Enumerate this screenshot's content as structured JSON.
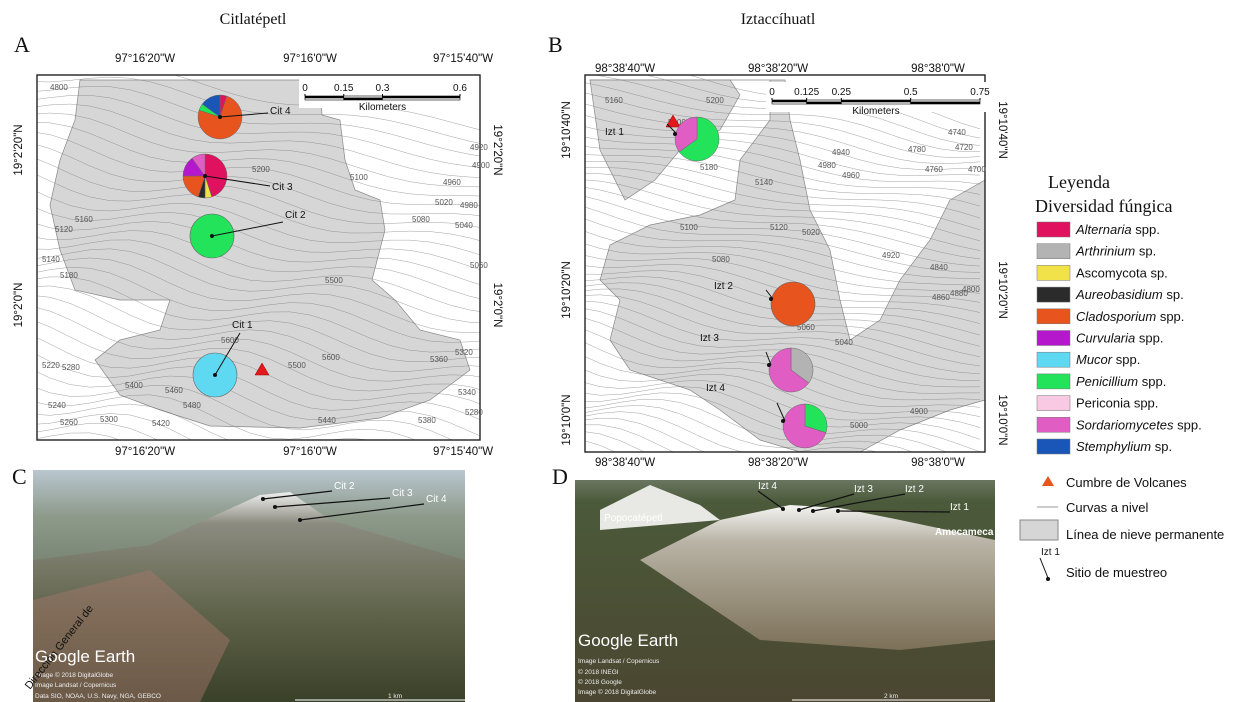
{
  "watermark": "Dirección General de",
  "legend": {
    "title": "Leyenda",
    "subtitle": "Diversidad fúngica",
    "taxa": [
      {
        "genus": "Alternaria",
        "rank": "spp.",
        "italic": true,
        "color": "#e0115f"
      },
      {
        "genus": "Arthrinium",
        "rank": "sp.",
        "italic": true,
        "color": "#b3b3b3"
      },
      {
        "genus": "Ascomycota",
        "rank": "sp.",
        "italic": false,
        "color": "#f2e24a"
      },
      {
        "genus": "Aureobasidium",
        "rank": "sp.",
        "italic": true,
        "color": "#2b2b2b"
      },
      {
        "genus": "Cladosporium",
        "rank": "spp.",
        "italic": true,
        "color": "#e8541e"
      },
      {
        "genus": "Curvularia",
        "rank": "spp.",
        "italic": true,
        "color": "#b417cc"
      },
      {
        "genus": "Mucor",
        "rank": "spp.",
        "italic": true,
        "color": "#5fd8f2"
      },
      {
        "genus": "Penicillium",
        "rank": "spp.",
        "italic": true,
        "color": "#22e35a"
      },
      {
        "genus": "Periconia",
        "rank": "spp.",
        "italic": false,
        "color": "#f9c8e2"
      },
      {
        "genus": "Sordariomycetes",
        "rank": "spp.",
        "italic": true,
        "color": "#e05ec4"
      },
      {
        "genus": "Stemphylium",
        "rank": "sp.",
        "italic": true,
        "color": "#1a56b8"
      }
    ],
    "symbols": {
      "summit": "Cumbre de Volcanes",
      "contours": "Curvas a nivel",
      "snow": "Línea de nieve permanente",
      "site_example": "Izt 1",
      "site": "Sitio de muestreo"
    }
  },
  "panels": [
    {
      "letter": "A",
      "title": "Citlatépetl",
      "lon_labels": [
        "97°16'20\"W",
        "97°16'0\"W",
        "97°15'40\"W"
      ],
      "lat_labels": [
        "19°2'20\"N",
        "19°2'0\"N"
      ],
      "scale_ticks": [
        0,
        0.15,
        0.3,
        0.6
      ],
      "scale_unit": "Kilometers",
      "contour_labels": [
        4800,
        4920,
        4900,
        4960,
        4980,
        5020,
        5040,
        5080,
        5060,
        5100,
        5200,
        5120,
        5160,
        5140,
        5180,
        5500,
        5600,
        5500,
        5600,
        5380,
        5320,
        5360,
        5340,
        5280,
        5280,
        5220,
        5240,
        5260,
        5300,
        5400,
        5420,
        5460,
        5480,
        5440
      ],
      "sites": [
        {
          "label": "Cit 4",
          "values": [
            5,
            0,
            0,
            0,
            75,
            0,
            0,
            5,
            0,
            0,
            15
          ]
        },
        {
          "label": "Cit 3",
          "values": [
            45,
            0,
            5,
            5,
            20,
            15,
            0,
            0,
            0,
            10,
            0
          ]
        },
        {
          "label": "Cit 2",
          "values": [
            0,
            0,
            0,
            0,
            0,
            0,
            0,
            100,
            0,
            0,
            0
          ]
        },
        {
          "label": "Cit 1",
          "values": [
            0,
            0,
            0,
            0,
            0,
            0,
            100,
            0,
            0,
            0,
            0
          ]
        }
      ]
    },
    {
      "letter": "B",
      "title": "Iztaccíhuatl",
      "lon_labels": [
        "98°38'40\"W",
        "98°38'20\"W",
        "98°38'0\"W"
      ],
      "lat_labels": [
        "19°10'40\"N",
        "19°10'20\"N",
        "19°10'0\"N"
      ],
      "scale_ticks": [
        0,
        0.125,
        0.25,
        0.5,
        0.75
      ],
      "scale_unit": "Kilometers",
      "contour_labels": [
        5160,
        5200,
        5200,
        5180,
        5140,
        5120,
        5100,
        5080,
        5060,
        5020,
        5040,
        5020,
        5000,
        4900,
        4920,
        4840,
        4860,
        4880,
        4800,
        4940,
        4980,
        4960,
        4780,
        4760,
        4720,
        4700,
        4740
      ],
      "sites": [
        {
          "label": "Izt 1",
          "values": [
            0,
            0,
            0,
            0,
            0,
            0,
            0,
            65,
            0,
            35,
            0
          ]
        },
        {
          "label": "Izt 2",
          "values": [
            0,
            0,
            0,
            0,
            100,
            0,
            0,
            0,
            0,
            0,
            0
          ]
        },
        {
          "label": "Izt 3",
          "values": [
            0,
            35,
            0,
            0,
            0,
            0,
            0,
            0,
            0,
            65,
            0
          ]
        },
        {
          "label": "Izt 4",
          "values": [
            0,
            0,
            0,
            0,
            0,
            0,
            0,
            30,
            0,
            70,
            0
          ]
        }
      ]
    }
  ],
  "photos": [
    {
      "letter": "C",
      "labels": [
        "Cit 2",
        "Cit 3",
        "Cit 4"
      ],
      "brand": "Google Earth",
      "credits": [
        "Image © 2018 DigitalGlobe",
        "Image Landsat / Copernicus",
        "Data SIO, NOAA, U.S. Navy, NGA, GEBCO"
      ],
      "scale": "1 km"
    },
    {
      "letter": "D",
      "places": [
        "Popocatépetl",
        "Amecameca"
      ],
      "labels": [
        "Izt 4",
        "Izt 3",
        "Izt 2",
        "Izt 1"
      ],
      "brand": "Google Earth",
      "credits": [
        "Image Landsat / Copernicus",
        "© 2018 INEGI",
        "© 2018 Google",
        "Image © 2018 DigitalGlobe"
      ],
      "scale": "2 km"
    }
  ]
}
